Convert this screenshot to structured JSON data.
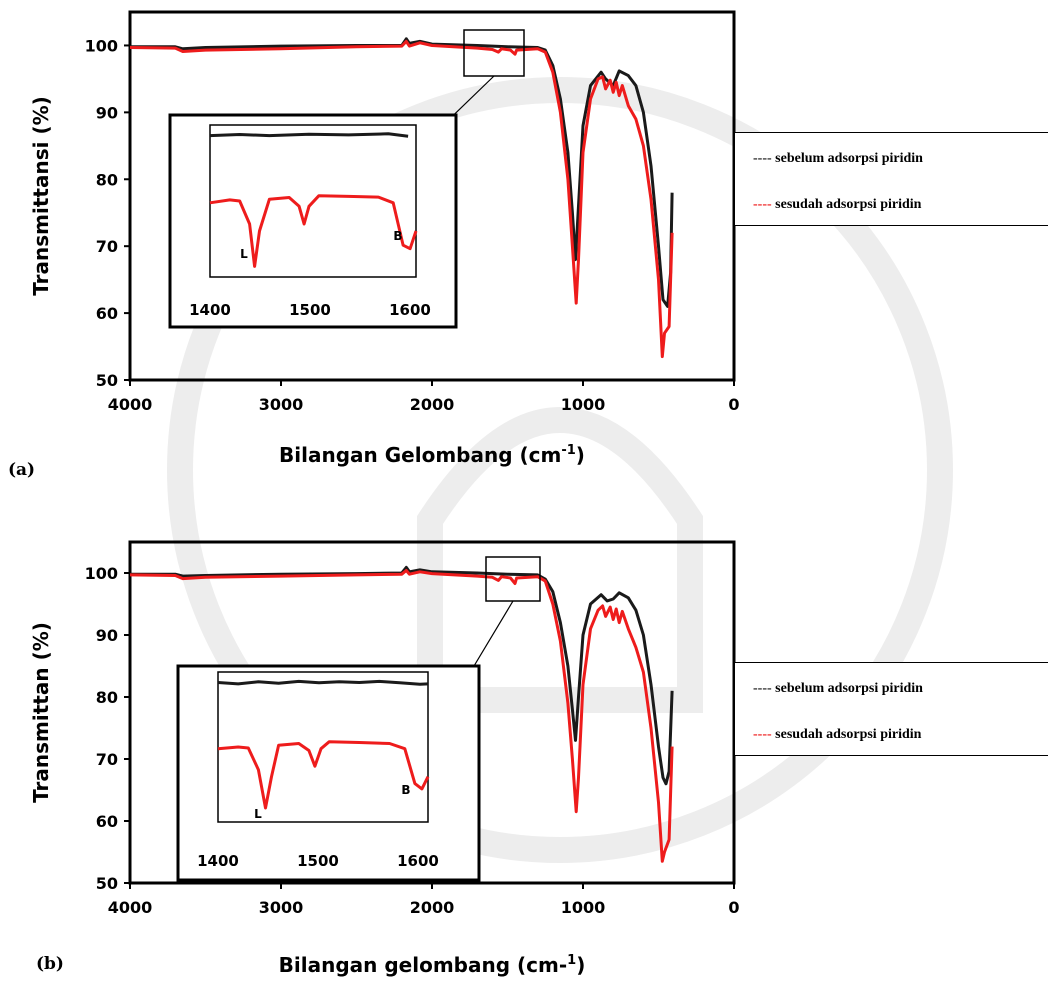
{
  "colors": {
    "before": "#1a1a1a",
    "after": "#ee1c1c"
  },
  "chart_data": [
    {
      "type": "line",
      "panel_label": "(a)",
      "ylabel": "Transmittansi (%)",
      "xlabel_main": "Bilangan Gelombang (cm",
      "xlabel_sup": "-1",
      "xlabel_end": ")",
      "xlim": [
        4000,
        0
      ],
      "ylim": [
        50,
        105
      ],
      "x_ticks": [
        "4000",
        "3000",
        "2000",
        "1000",
        "0"
      ],
      "y_ticks": [
        "100",
        "90",
        "80",
        "70",
        "60",
        "50"
      ],
      "legend_position": "right",
      "series": [
        {
          "name": "sebelum adsorpsi piridin",
          "legend_dash": "----",
          "points": [
            [
              4000,
              99.8
            ],
            [
              3700,
              99.8
            ],
            [
              3650,
              99.5
            ],
            [
              3500,
              99.7
            ],
            [
              3000,
              99.9
            ],
            [
              2500,
              100
            ],
            [
              2200,
              100
            ],
            [
              2170,
              101
            ],
            [
              2150,
              100.3
            ],
            [
              2080,
              100.6
            ],
            [
              2000,
              100.2
            ],
            [
              1700,
              100
            ],
            [
              1500,
              99.8
            ],
            [
              1300,
              99.7
            ],
            [
              1250,
              99.3
            ],
            [
              1200,
              97
            ],
            [
              1150,
              92
            ],
            [
              1100,
              84
            ],
            [
              1070,
              75
            ],
            [
              1050,
              68
            ],
            [
              1030,
              76
            ],
            [
              1000,
              88
            ],
            [
              950,
              94
            ],
            [
              880,
              96
            ],
            [
              850,
              95
            ],
            [
              800,
              94
            ],
            [
              760,
              96.2
            ],
            [
              700,
              95.5
            ],
            [
              650,
              94
            ],
            [
              600,
              90
            ],
            [
              550,
              82
            ],
            [
              500,
              70
            ],
            [
              470,
              62
            ],
            [
              440,
              61
            ],
            [
              420,
              66
            ],
            [
              410,
              78
            ]
          ]
        },
        {
          "name": "sesudah adsorpsi piridin",
          "legend_dash": "----",
          "points": [
            [
              4000,
              99.7
            ],
            [
              3700,
              99.6
            ],
            [
              3650,
              99.1
            ],
            [
              3500,
              99.3
            ],
            [
              3000,
              99.5
            ],
            [
              2500,
              99.8
            ],
            [
              2200,
              99.9
            ],
            [
              2170,
              100.6
            ],
            [
              2150,
              99.9
            ],
            [
              2080,
              100.4
            ],
            [
              2000,
              100
            ],
            [
              1700,
              99.6
            ],
            [
              1600,
              99.4
            ],
            [
              1560,
              99.0
            ],
            [
              1540,
              99.5
            ],
            [
              1480,
              99.3
            ],
            [
              1450,
              98.7
            ],
            [
              1440,
              99.3
            ],
            [
              1300,
              99.5
            ],
            [
              1250,
              99
            ],
            [
              1200,
              96
            ],
            [
              1150,
              90
            ],
            [
              1100,
              80
            ],
            [
              1070,
              70
            ],
            [
              1045,
              61.5
            ],
            [
              1030,
              68
            ],
            [
              1000,
              84
            ],
            [
              950,
              92
            ],
            [
              900,
              95
            ],
            [
              870,
              95.3
            ],
            [
              850,
              93.5
            ],
            [
              820,
              94.8
            ],
            [
              800,
              93
            ],
            [
              780,
              94.5
            ],
            [
              760,
              92.5
            ],
            [
              740,
              94
            ],
            [
              700,
              91
            ],
            [
              650,
              89
            ],
            [
              600,
              85
            ],
            [
              550,
              77
            ],
            [
              500,
              65
            ],
            [
              475,
              53.5
            ],
            [
              460,
              57
            ],
            [
              430,
              58
            ],
            [
              410,
              72
            ]
          ]
        }
      ],
      "inset": {
        "x_ticks": [
          "1400",
          "1500",
          "1600"
        ],
        "peak_labels": [
          "L",
          "B"
        ],
        "before": [
          [
            1400,
            97
          ],
          [
            1430,
            97.3
          ],
          [
            1460,
            97
          ],
          [
            1500,
            97.4
          ],
          [
            1540,
            97.2
          ],
          [
            1580,
            97.5
          ],
          [
            1600,
            96.8
          ]
        ],
        "after": [
          [
            1400,
            78
          ],
          [
            1420,
            78.8
          ],
          [
            1430,
            78.5
          ],
          [
            1440,
            72
          ],
          [
            1445,
            60
          ],
          [
            1450,
            70
          ],
          [
            1460,
            79
          ],
          [
            1480,
            79.5
          ],
          [
            1490,
            77
          ],
          [
            1495,
            72
          ],
          [
            1500,
            77
          ],
          [
            1510,
            80
          ],
          [
            1540,
            79.8
          ],
          [
            1570,
            79.6
          ],
          [
            1585,
            78
          ],
          [
            1595,
            66
          ],
          [
            1602,
            65
          ],
          [
            1608,
            70
          ]
        ]
      }
    },
    {
      "type": "line",
      "panel_label": "(b)",
      "ylabel": "Transmittan (%)",
      "xlabel_main": "Bilangan gelombang (cm-",
      "xlabel_sup": "1",
      "xlabel_end": ")",
      "xlim": [
        4000,
        0
      ],
      "ylim": [
        50,
        105
      ],
      "x_ticks": [
        "4000",
        "3000",
        "2000",
        "1000",
        "0"
      ],
      "y_ticks": [
        "100",
        "90",
        "80",
        "70",
        "60",
        "50"
      ],
      "legend_position": "right",
      "series": [
        {
          "name": "sebelum adsorpsi piridin",
          "legend_dash": "----",
          "points": [
            [
              4000,
              99.8
            ],
            [
              3700,
              99.8
            ],
            [
              3650,
              99.5
            ],
            [
              3500,
              99.6
            ],
            [
              3000,
              99.8
            ],
            [
              2500,
              99.9
            ],
            [
              2200,
              100
            ],
            [
              2170,
              100.9
            ],
            [
              2150,
              100.2
            ],
            [
              2080,
              100.5
            ],
            [
              2000,
              100.2
            ],
            [
              1700,
              100
            ],
            [
              1500,
              99.8
            ],
            [
              1300,
              99.7
            ],
            [
              1250,
              99
            ],
            [
              1200,
              97
            ],
            [
              1150,
              92
            ],
            [
              1100,
              85
            ],
            [
              1070,
              78
            ],
            [
              1050,
              73
            ],
            [
              1030,
              80
            ],
            [
              1000,
              90
            ],
            [
              950,
              95
            ],
            [
              880,
              96.5
            ],
            [
              840,
              95.5
            ],
            [
              800,
              95.8
            ],
            [
              760,
              96.8
            ],
            [
              700,
              96
            ],
            [
              650,
              94
            ],
            [
              600,
              90
            ],
            [
              550,
              82
            ],
            [
              500,
              72
            ],
            [
              470,
              67
            ],
            [
              450,
              66
            ],
            [
              430,
              68
            ],
            [
              410,
              81
            ]
          ]
        },
        {
          "name": "sesudah adsorpsi piridin",
          "legend_dash": "----",
          "points": [
            [
              4000,
              99.7
            ],
            [
              3700,
              99.6
            ],
            [
              3650,
              99.1
            ],
            [
              3500,
              99.3
            ],
            [
              3000,
              99.5
            ],
            [
              2500,
              99.7
            ],
            [
              2200,
              99.8
            ],
            [
              2170,
              100.4
            ],
            [
              2150,
              99.8
            ],
            [
              2080,
              100.2
            ],
            [
              2000,
              99.9
            ],
            [
              1700,
              99.5
            ],
            [
              1600,
              99.3
            ],
            [
              1560,
              98.8
            ],
            [
              1540,
              99.4
            ],
            [
              1480,
              99.2
            ],
            [
              1450,
              98.3
            ],
            [
              1440,
              99.2
            ],
            [
              1300,
              99.4
            ],
            [
              1250,
              98.7
            ],
            [
              1200,
              95
            ],
            [
              1150,
              89
            ],
            [
              1100,
              79
            ],
            [
              1070,
              70
            ],
            [
              1045,
              61.5
            ],
            [
              1030,
              67
            ],
            [
              1000,
              82
            ],
            [
              950,
              91
            ],
            [
              900,
              94
            ],
            [
              870,
              94.7
            ],
            [
              850,
              93
            ],
            [
              820,
              94.5
            ],
            [
              800,
              92.5
            ],
            [
              780,
              94.2
            ],
            [
              760,
              92
            ],
            [
              740,
              93.8
            ],
            [
              700,
              91
            ],
            [
              650,
              88
            ],
            [
              600,
              84
            ],
            [
              550,
              75
            ],
            [
              500,
              63
            ],
            [
              475,
              53.5
            ],
            [
              460,
              55
            ],
            [
              430,
              57
            ],
            [
              410,
              72
            ]
          ]
        }
      ],
      "inset": {
        "x_ticks": [
          "1400",
          "1500",
          "1600"
        ],
        "peak_labels": [
          "L",
          "B"
        ],
        "before": [
          [
            1400,
            97
          ],
          [
            1420,
            96.6
          ],
          [
            1440,
            97.2
          ],
          [
            1460,
            96.8
          ],
          [
            1480,
            97.3
          ],
          [
            1500,
            96.9
          ],
          [
            1520,
            97.2
          ],
          [
            1540,
            97
          ],
          [
            1560,
            97.3
          ],
          [
            1580,
            96.9
          ],
          [
            1600,
            96.5
          ],
          [
            1608,
            96.6
          ]
        ],
        "after": [
          [
            1400,
            78
          ],
          [
            1420,
            78.5
          ],
          [
            1430,
            78.2
          ],
          [
            1440,
            72
          ],
          [
            1447,
            61
          ],
          [
            1453,
            70
          ],
          [
            1460,
            79
          ],
          [
            1480,
            79.5
          ],
          [
            1490,
            77.5
          ],
          [
            1496,
            73
          ],
          [
            1502,
            78
          ],
          [
            1510,
            80
          ],
          [
            1540,
            79.8
          ],
          [
            1570,
            79.5
          ],
          [
            1585,
            78
          ],
          [
            1595,
            68
          ],
          [
            1602,
            66.5
          ],
          [
            1608,
            70
          ]
        ]
      }
    }
  ]
}
